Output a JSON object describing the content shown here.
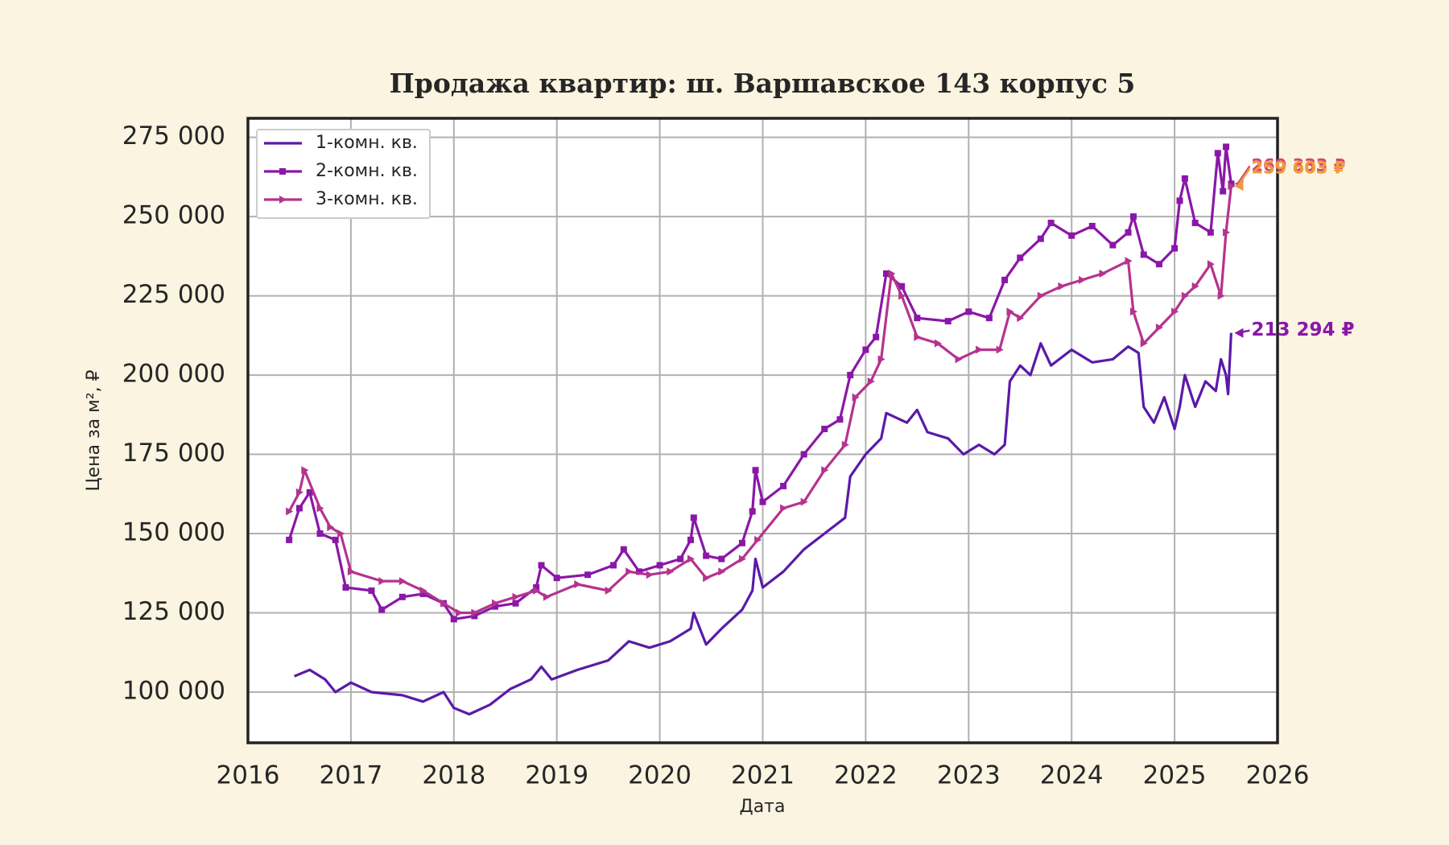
{
  "chart_data": {
    "type": "line",
    "title": "Продажа квартир: ш. Варшавское 143 корпус 5",
    "x_label": "Дата",
    "y_label": "Цена за м², ₽",
    "xlim": [
      2016,
      2026
    ],
    "xticks": [
      2016,
      2017,
      2018,
      2019,
      2020,
      2021,
      2022,
      2023,
      2024,
      2025,
      2026
    ],
    "ylim": [
      84000,
      281000
    ],
    "yticks": [
      {
        "value": 100000,
        "label": "100 000"
      },
      {
        "value": 125000,
        "label": "125 000"
      },
      {
        "value": 150000,
        "label": "150 000"
      },
      {
        "value": 175000,
        "label": "175 000"
      },
      {
        "value": 200000,
        "label": "200 000"
      },
      {
        "value": 225000,
        "label": "225 000"
      },
      {
        "value": 250000,
        "label": "250 000"
      },
      {
        "value": 275000,
        "label": "275 000"
      }
    ],
    "grid": true,
    "legend": "upper left",
    "series": [
      {
        "name": "1-комн. кв.",
        "color": "#5a1aa8",
        "marker": "none",
        "x": [
          2016.45,
          2016.6,
          2016.75,
          2016.85,
          2017.0,
          2017.2,
          2017.5,
          2017.7,
          2017.9,
          2018.0,
          2018.15,
          2018.35,
          2018.55,
          2018.75,
          2018.85,
          2018.95,
          2019.2,
          2019.5,
          2019.7,
          2019.9,
          2020.1,
          2020.3,
          2020.33,
          2020.45,
          2020.6,
          2020.8,
          2020.9,
          2020.93,
          2021.0,
          2021.2,
          2021.4,
          2021.6,
          2021.8,
          2021.85,
          2022.0,
          2022.15,
          2022.2,
          2022.4,
          2022.5,
          2022.6,
          2022.8,
          2022.95,
          2023.1,
          2023.25,
          2023.35,
          2023.4,
          2023.5,
          2023.6,
          2023.7,
          2023.8,
          2024.0,
          2024.2,
          2024.4,
          2024.55,
          2024.65,
          2024.7,
          2024.8,
          2024.9,
          2025.0,
          2025.05,
          2025.1,
          2025.2,
          2025.3,
          2025.4,
          2025.45,
          2025.5,
          2025.52,
          2025.55
        ],
        "values": [
          105000,
          107000,
          104000,
          100000,
          103000,
          100000,
          99000,
          97000,
          100000,
          95000,
          93000,
          96000,
          101000,
          104000,
          108000,
          104000,
          107000,
          110000,
          116000,
          114000,
          116000,
          120000,
          125000,
          115000,
          120000,
          126000,
          132000,
          142000,
          133000,
          138000,
          145000,
          150000,
          155000,
          168000,
          175000,
          180000,
          188000,
          185000,
          189000,
          182000,
          180000,
          175000,
          178000,
          175000,
          178000,
          198000,
          203000,
          200000,
          210000,
          203000,
          208000,
          204000,
          205000,
          209000,
          207000,
          190000,
          185000,
          193000,
          183000,
          190000,
          200000,
          190000,
          198000,
          195000,
          205000,
          200000,
          194000,
          213294
        ]
      },
      {
        "name": "2-комн. кв.",
        "color": "#8a17a8",
        "marker": "square",
        "x": [
          2016.4,
          2016.5,
          2016.6,
          2016.7,
          2016.85,
          2016.95,
          2017.2,
          2017.3,
          2017.5,
          2017.7,
          2017.9,
          2018.0,
          2018.2,
          2018.4,
          2018.6,
          2018.8,
          2018.85,
          2019.0,
          2019.3,
          2019.55,
          2019.65,
          2019.8,
          2020.0,
          2020.2,
          2020.3,
          2020.33,
          2020.45,
          2020.6,
          2020.8,
          2020.9,
          2020.93,
          2021.0,
          2021.2,
          2021.4,
          2021.6,
          2021.75,
          2021.85,
          2022.0,
          2022.1,
          2022.2,
          2022.35,
          2022.5,
          2022.8,
          2023.0,
          2023.2,
          2023.35,
          2023.5,
          2023.7,
          2023.8,
          2024.0,
          2024.2,
          2024.4,
          2024.55,
          2024.6,
          2024.7,
          2024.85,
          2025.0,
          2025.05,
          2025.1,
          2025.2,
          2025.35,
          2025.42,
          2025.47,
          2025.5,
          2025.55
        ],
        "values": [
          148000,
          158000,
          163000,
          150000,
          148000,
          133000,
          132000,
          126000,
          130000,
          131000,
          128000,
          123000,
          124000,
          127000,
          128000,
          133000,
          140000,
          136000,
          137000,
          140000,
          145000,
          138000,
          140000,
          142000,
          148000,
          155000,
          143000,
          142000,
          147000,
          157000,
          170000,
          160000,
          165000,
          175000,
          183000,
          186000,
          200000,
          208000,
          212000,
          232000,
          228000,
          218000,
          217000,
          220000,
          218000,
          230000,
          237000,
          243000,
          248000,
          244000,
          247000,
          241000,
          245000,
          250000,
          238000,
          235000,
          240000,
          255000,
          262000,
          248000,
          245000,
          270000,
          258000,
          272000,
          260333
        ]
      },
      {
        "name": "3-комн. кв.",
        "color": "#b5338f",
        "marker": "triangle",
        "x": [
          2016.4,
          2016.5,
          2016.55,
          2016.7,
          2016.8,
          2016.9,
          2017.0,
          2017.3,
          2017.5,
          2017.7,
          2017.9,
          2018.05,
          2018.2,
          2018.4,
          2018.6,
          2018.8,
          2018.9,
          2019.2,
          2019.5,
          2019.7,
          2019.9,
          2020.1,
          2020.3,
          2020.45,
          2020.6,
          2020.8,
          2020.95,
          2021.2,
          2021.4,
          2021.6,
          2021.8,
          2021.9,
          2022.05,
          2022.15,
          2022.25,
          2022.35,
          2022.5,
          2022.7,
          2022.9,
          2023.1,
          2023.3,
          2023.4,
          2023.5,
          2023.7,
          2023.9,
          2024.1,
          2024.3,
          2024.55,
          2024.6,
          2024.7,
          2024.85,
          2025.0,
          2025.1,
          2025.2,
          2025.35,
          2025.45,
          2025.5,
          2025.55
        ],
        "values": [
          157000,
          163000,
          170000,
          158000,
          152000,
          150000,
          138000,
          135000,
          135000,
          132000,
          128000,
          125000,
          125000,
          128000,
          130000,
          132000,
          130000,
          134000,
          132000,
          138000,
          137000,
          138000,
          142000,
          136000,
          138000,
          142000,
          148000,
          158000,
          160000,
          170000,
          178000,
          193000,
          198000,
          205000,
          232000,
          225000,
          212000,
          210000,
          205000,
          208000,
          208000,
          220000,
          218000,
          225000,
          228000,
          230000,
          232000,
          236000,
          220000,
          210000,
          215000,
          220000,
          225000,
          228000,
          235000,
          225000,
          245000,
          259603
        ]
      }
    ],
    "annotations": [
      {
        "text": "213 294 ₽",
        "x": 2025.55,
        "value": 213294,
        "color": "#8a17a8"
      },
      {
        "text": "260 333 ₽",
        "x": 2025.55,
        "value": 260333,
        "color": "#d2456e"
      },
      {
        "text": "259 603 ₽",
        "x": 2025.55,
        "value": 259603,
        "color": "#f09a3e"
      }
    ]
  }
}
